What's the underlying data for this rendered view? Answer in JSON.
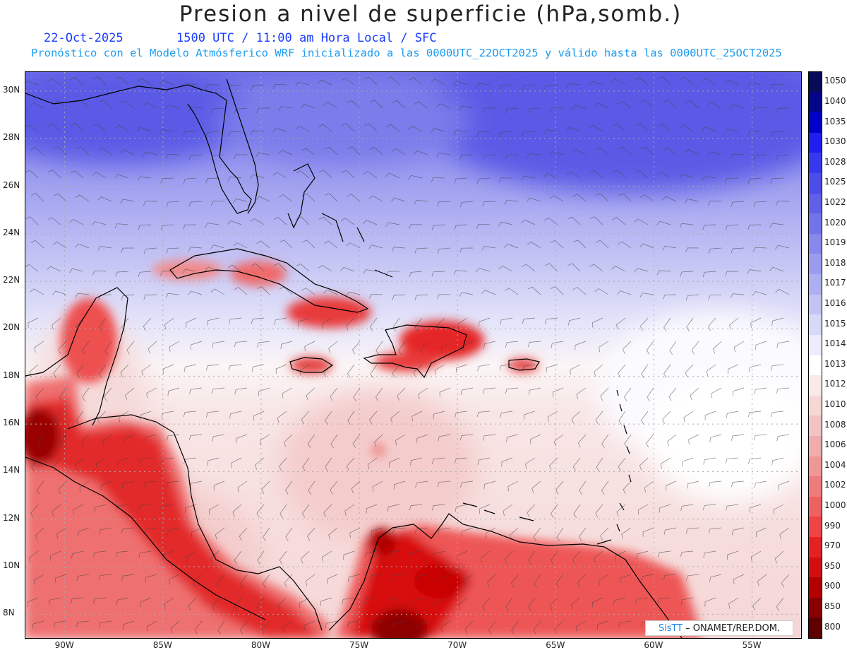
{
  "title": "Presion a nivel de superficie (hPa,somb.)",
  "date": "22-Oct-2025",
  "time_info": "1500 UTC / 11:00 am Hora Local / SFC",
  "forecast_info": "Pronóstico con el Modelo Atmósferico WRF inicializado a las 0000UTC_22OCT2025 y válido hasta las  0000UTC_25OCT2025",
  "credit": {
    "brand": "SisTT",
    "org": "– ONAMET/REP.DOM."
  },
  "axes": {
    "lat_labels": [
      "30N",
      "28N",
      "26N",
      "24N",
      "22N",
      "20N",
      "18N",
      "16N",
      "14N",
      "12N",
      "10N",
      "8N"
    ],
    "lat_values": [
      30,
      28,
      26,
      24,
      22,
      20,
      18,
      16,
      14,
      12,
      10,
      8
    ],
    "lon_labels": [
      "90W",
      "85W",
      "80W",
      "75W",
      "70W",
      "65W",
      "60W",
      "55W"
    ],
    "lon_values": [
      -90,
      -85,
      -80,
      -75,
      -70,
      -65,
      -60,
      -55
    ],
    "lon_range": [
      -92.0,
      -52.5
    ],
    "lat_range": [
      7.0,
      30.8
    ]
  },
  "colorbar": {
    "levels": [
      "1050",
      "1040",
      "1035",
      "1030",
      "1028",
      "1025",
      "1022",
      "1020",
      "1019",
      "1018",
      "1017",
      "1016",
      "1015",
      "1014",
      "1013",
      "1012",
      "1010",
      "1008",
      "1006",
      "1004",
      "1002",
      "1000",
      "990",
      "970",
      "950",
      "900",
      "850",
      "800"
    ],
    "colors": [
      "#0a0a5a",
      "#05058a",
      "#0000c8",
      "#1e1ef0",
      "#3737ee",
      "#4c4ce8",
      "#5f5fe8",
      "#7373ea",
      "#8787ec",
      "#9b9bf0",
      "#aeaef2",
      "#c3c3f4",
      "#d8d8f8",
      "#ececfb",
      "#ffffff",
      "#fbe9e9",
      "#f7d6d6",
      "#f4c3c3",
      "#f1adad",
      "#ef9696",
      "#ef7c7c",
      "#ee6161",
      "#ee4444",
      "#e52222",
      "#d40e0e",
      "#b20000",
      "#8a0000",
      "#5e0000"
    ]
  },
  "map_colors": {
    "high_strong": "#5656e6",
    "high_mid": "#8e8eee",
    "high_light": "#c4c4f5",
    "neutral": "#f9f1f1",
    "low_light": "#f7dcdc",
    "low_mid": "#f2b6b6",
    "low_strong": "#e63030",
    "low_deep": "#b50000"
  }
}
